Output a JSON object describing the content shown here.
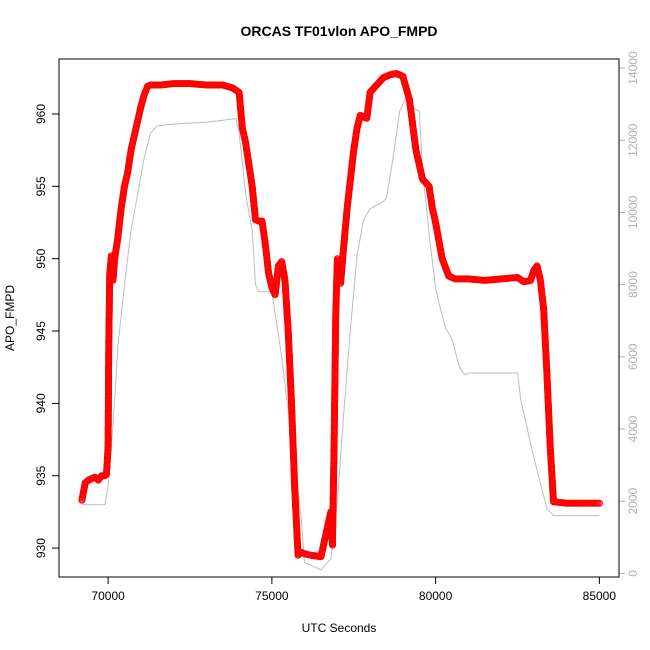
{
  "chart_data": {
    "type": "scatter",
    "title": "ORCAS TF01vlon APO_FMPD",
    "xlabel": "UTC Seconds",
    "ylabel": "APO_FMPD",
    "xlim": [
      68500,
      85600
    ],
    "ylim": [
      928.0,
      963.8
    ],
    "y2lim": [
      -100,
      14250
    ],
    "x_ticks": [
      70000,
      75000,
      80000,
      85000
    ],
    "y_ticks": [
      930,
      935,
      940,
      945,
      950,
      955,
      960
    ],
    "y2_ticks": [
      0,
      2000,
      4000,
      6000,
      8000,
      10000,
      12000,
      14000
    ],
    "colors": {
      "primary": "#ff0000",
      "secondary": "#bdbdbd",
      "axis": "#000000",
      "axis_right": "#b0b0b0"
    },
    "series": [
      {
        "name": "APO_FMPD",
        "axis": "left",
        "style": "points-dashed",
        "x": [
          69200,
          69300,
          69400,
          69500,
          69600,
          69700,
          69800,
          69900,
          69950,
          70000,
          70020,
          70050,
          70100,
          70150,
          70200,
          70300,
          70400,
          70500,
          70600,
          70700,
          70800,
          70900,
          71000,
          71100,
          71200,
          71300,
          71400,
          71600,
          72000,
          72500,
          73000,
          73500,
          73800,
          74000,
          74100,
          74200,
          74300,
          74400,
          74500,
          74600,
          74700,
          74800,
          74900,
          75000,
          75100,
          75200,
          75300,
          75400,
          75500,
          75600,
          75700,
          75800,
          75900,
          76000,
          76200,
          76500,
          76800,
          76850,
          76900,
          76950,
          77000,
          77100,
          77200,
          77300,
          77400,
          77500,
          77600,
          77700,
          77800,
          77900,
          78000,
          78200,
          78400,
          78600,
          78800,
          79000,
          79200,
          79400,
          79600,
          79800,
          79900,
          80000,
          80200,
          80400,
          80600,
          80800,
          81000,
          81500,
          82000,
          82500,
          82700,
          82900,
          83000,
          83100,
          83200,
          83300,
          83400,
          83500,
          83600,
          84000,
          84500,
          85000
        ],
        "y": [
          933.3,
          934.5,
          934.7,
          934.8,
          934.9,
          934.7,
          935.0,
          935.0,
          935.1,
          937.0,
          944.0,
          949.0,
          950.2,
          948.5,
          950.0,
          951.5,
          953.5,
          955.0,
          956.0,
          957.5,
          958.5,
          959.5,
          960.5,
          961.3,
          961.9,
          962.0,
          962.0,
          962.0,
          962.1,
          962.1,
          962.0,
          962.0,
          961.8,
          961.5,
          959.0,
          958.0,
          956.5,
          955.0,
          952.7,
          952.6,
          952.6,
          951.0,
          949.0,
          948.0,
          947.5,
          949.5,
          949.8,
          948.5,
          945.0,
          940.0,
          934.0,
          929.5,
          929.7,
          929.6,
          929.5,
          929.4,
          932.5,
          930.2,
          937.0,
          946.0,
          950.0,
          948.3,
          951.0,
          953.5,
          955.5,
          957.5,
          959.0,
          959.9,
          959.8,
          959.7,
          961.5,
          962.0,
          962.5,
          962.7,
          962.8,
          962.6,
          961.0,
          957.5,
          955.5,
          955.0,
          953.5,
          952.5,
          950.0,
          948.8,
          948.6,
          948.6,
          948.6,
          948.5,
          948.6,
          948.7,
          948.4,
          948.5,
          949.2,
          949.5,
          948.5,
          946.5,
          942.0,
          937.0,
          933.2,
          933.1,
          933.1,
          933.1
        ]
      },
      {
        "name": "",
        "axis": "right",
        "style": "line",
        "x": [
          69200,
          69500,
          69900,
          70000,
          70100,
          70200,
          70300,
          70500,
          70700,
          70900,
          71100,
          71300,
          71500,
          72000,
          73000,
          73900,
          74000,
          74200,
          74400,
          74500,
          74600,
          74700,
          74900,
          75000,
          75100,
          75300,
          75500,
          75700,
          75900,
          76000,
          76500,
          76800,
          77000,
          77200,
          77400,
          77600,
          77800,
          78000,
          78200,
          78400,
          78500,
          78700,
          78900,
          79100,
          79300,
          79500,
          79600,
          79800,
          80000,
          80100,
          80300,
          80500,
          80700,
          80800,
          80900,
          81000,
          82000,
          82500,
          82600,
          82800,
          83000,
          83200,
          83400,
          83600,
          84000,
          85000
        ],
        "y": [
          1900,
          1900,
          1900,
          2400,
          3500,
          4800,
          6300,
          8000,
          9500,
          10500,
          11500,
          12200,
          12400,
          12450,
          12500,
          12600,
          12200,
          10500,
          9500,
          8000,
          7800,
          7800,
          7800,
          7800,
          7200,
          6000,
          4500,
          3200,
          1500,
          300,
          100,
          400,
          2000,
          4500,
          6800,
          8800,
          9800,
          10100,
          10200,
          10300,
          10400,
          11500,
          12800,
          13200,
          12900,
          12800,
          11200,
          9400,
          7900,
          7500,
          6800,
          6500,
          5800,
          5600,
          5500,
          5550,
          5550,
          5550,
          4800,
          4000,
          3200,
          2500,
          1800,
          1600,
          1600,
          1600
        ]
      }
    ]
  }
}
